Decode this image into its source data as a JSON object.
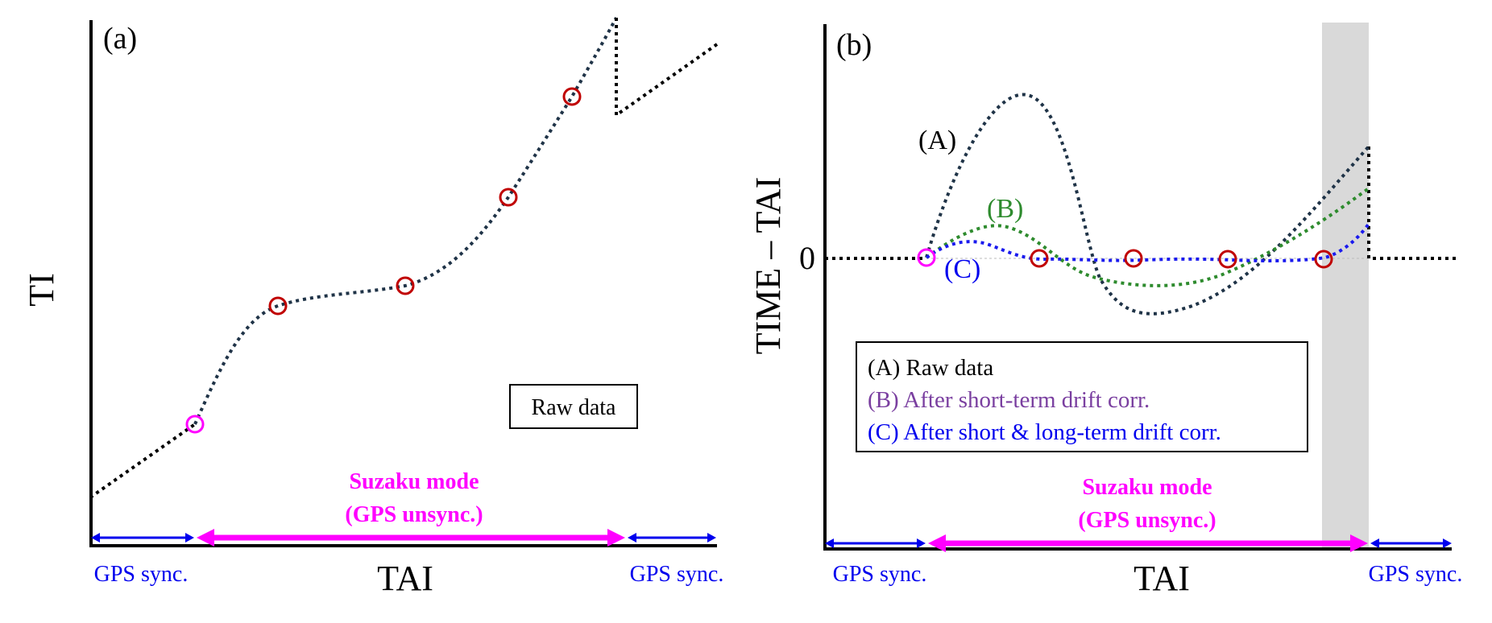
{
  "colors": {
    "axis": "#000000",
    "curve_raw": "#1f3347",
    "curve_b": "#2e8b2e",
    "curve_c": "#1a1aee",
    "marker_red": "#c00000",
    "marker_magenta": "#ff00ff",
    "sync_arrow": "#0000ee",
    "unsync_arrow": "#ff00ff",
    "legend_a": "#000000",
    "legend_b": "#7a3fa0",
    "legend_c": "#0000ee",
    "shade": "#d9d9d9"
  },
  "panel_a": {
    "label": "(a)",
    "ylabel": "TI",
    "xlabel": "TAI",
    "box_label": "Raw data",
    "mode_title": "Suzaku mode",
    "mode_sub": "(GPS unsync.)",
    "gps_left": "GPS sync.",
    "gps_right": "GPS sync."
  },
  "panel_b": {
    "label": "(b)",
    "ylabel": "TIME – TAI",
    "xlabel": "TAI",
    "zero": "0",
    "curve_a_label": "(A)",
    "curve_b_label": "(B)",
    "curve_c_label": "(C)",
    "legend": {
      "a": "(A) Raw data",
      "b": "(B) After short-term drift corr.",
      "c": "(C) After short & long-term drift corr."
    },
    "mode_title": "Suzaku mode",
    "mode_sub": "(GPS unsync.)",
    "gps_left": "GPS sync.",
    "gps_right": "GPS sync."
  }
}
